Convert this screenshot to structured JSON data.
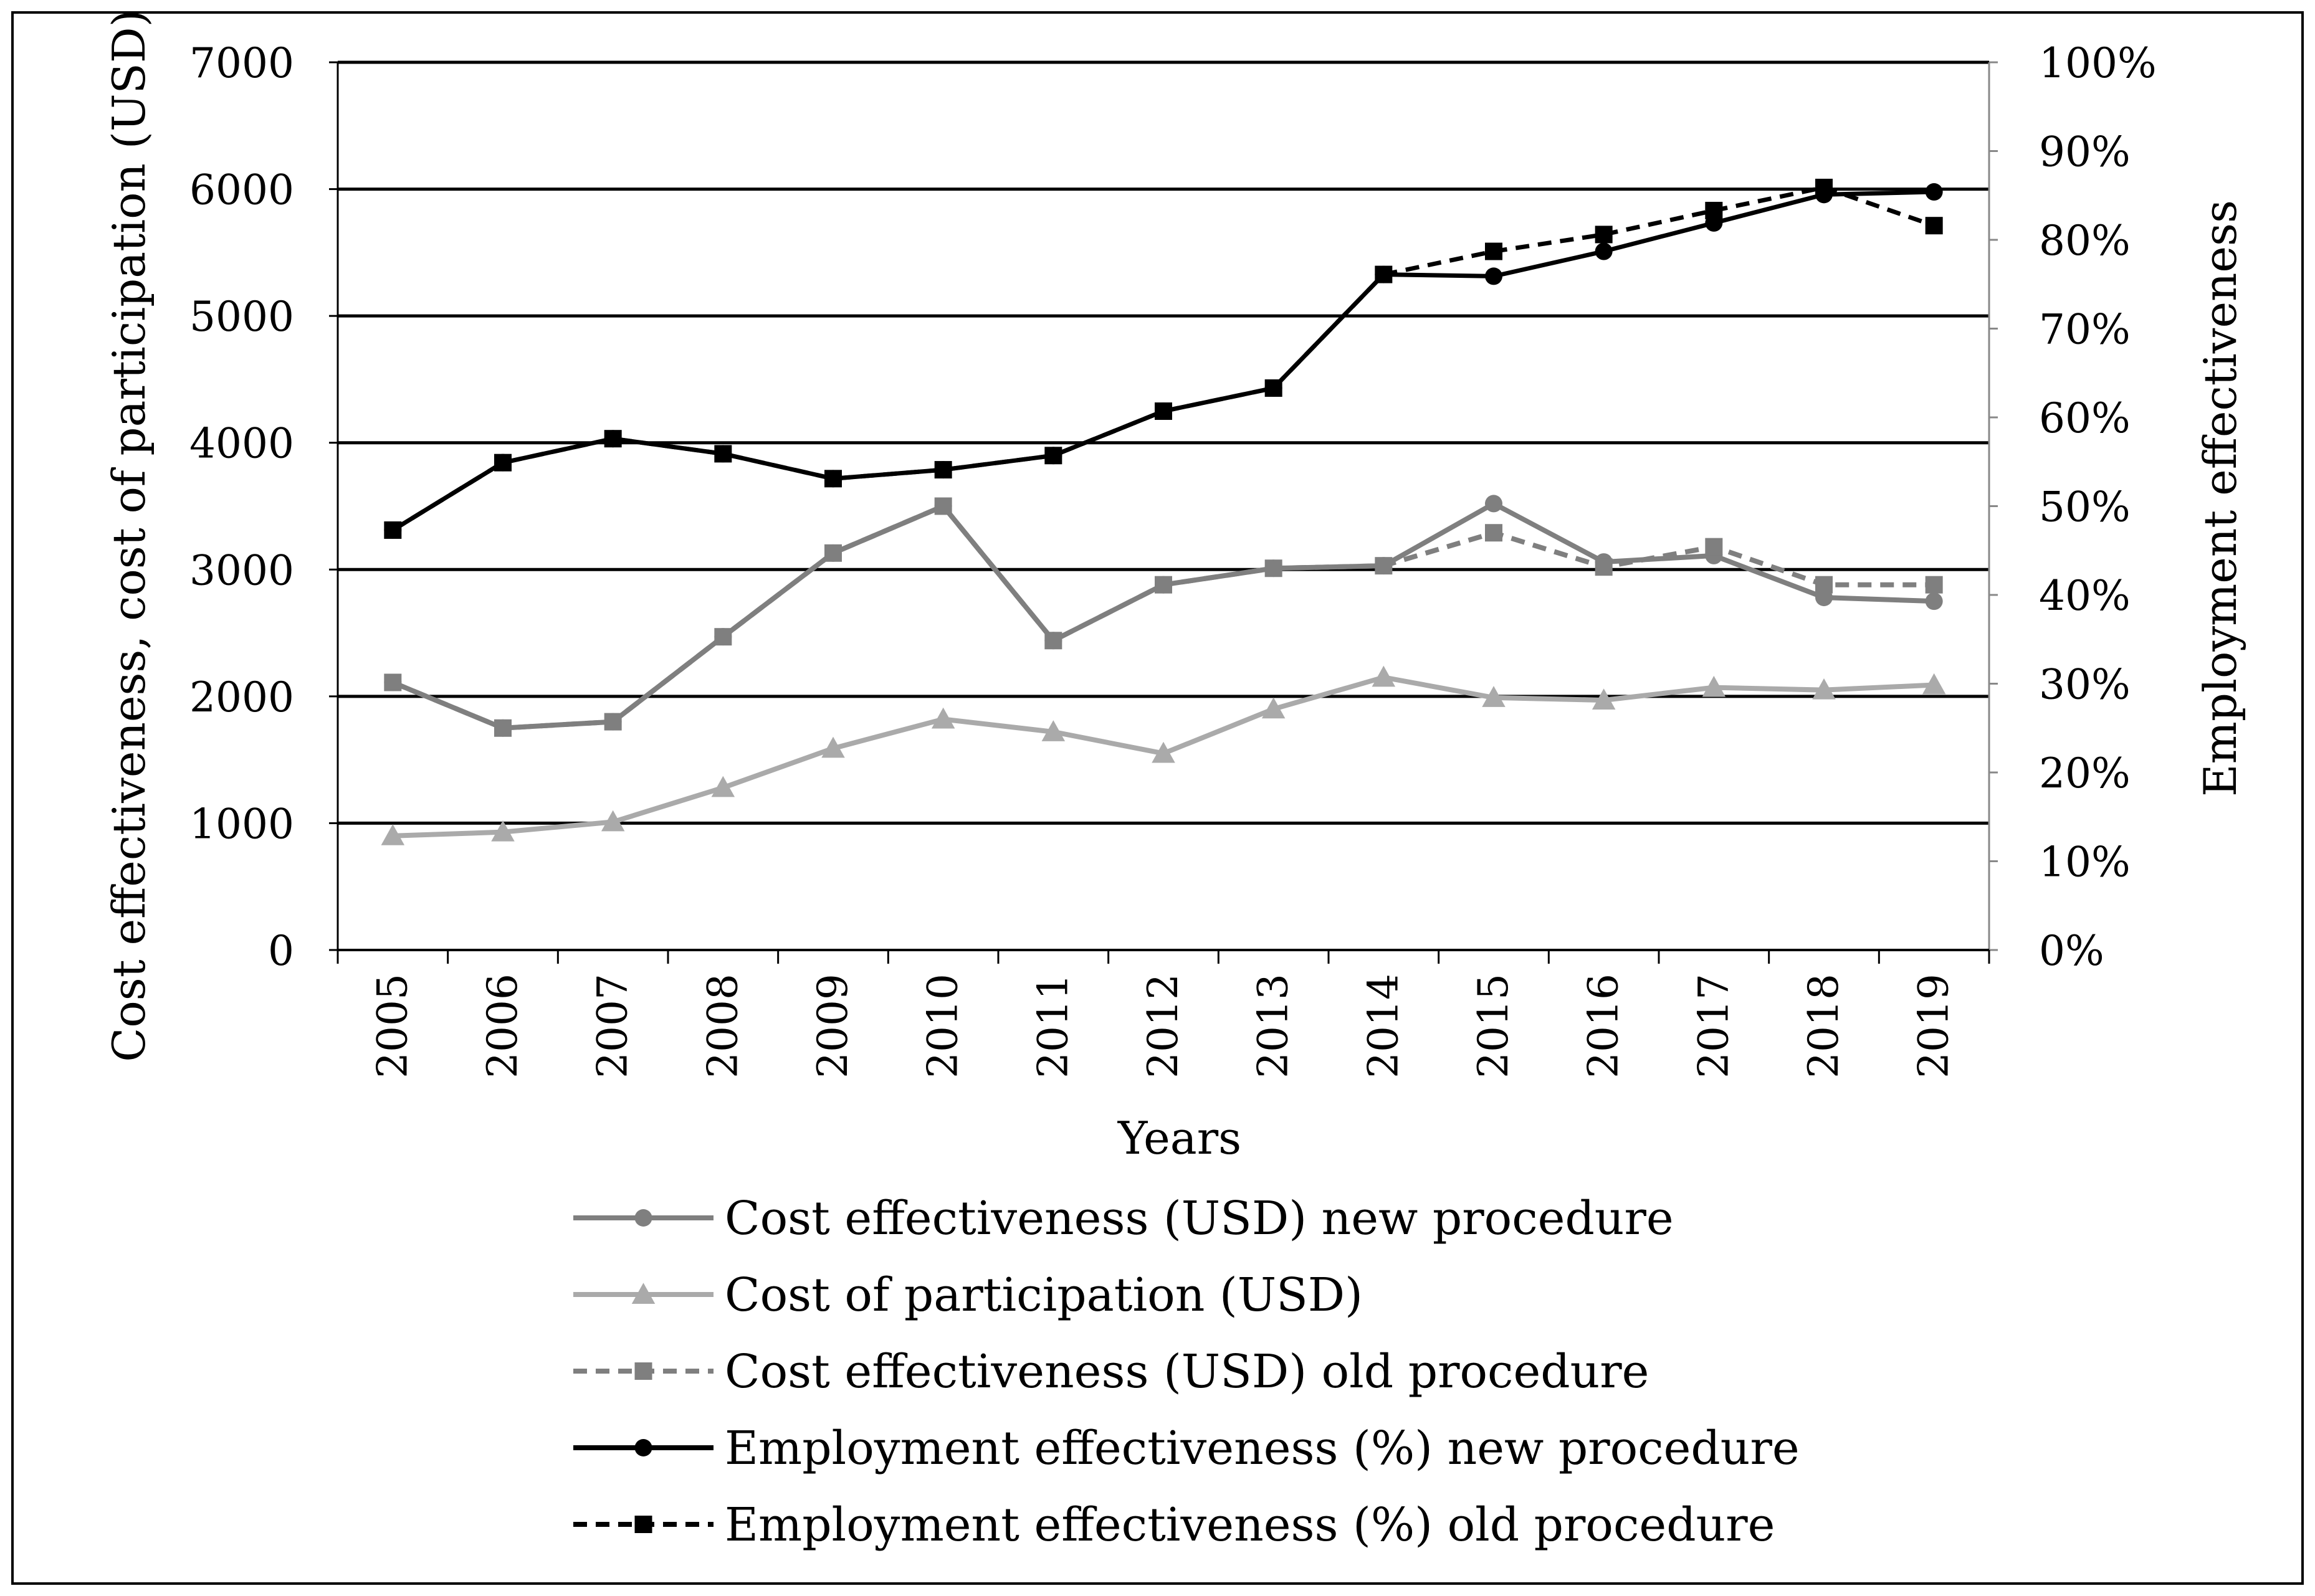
{
  "chart_data": {
    "type": "line",
    "title": "",
    "xlabel": "Years",
    "ylabel": "Cost effectiveness, cost of participation (USD)",
    "y2label": "Employment effectiveness",
    "categories": [
      "2005",
      "2006",
      "2007",
      "2008",
      "2009",
      "2010",
      "2011",
      "2012",
      "2013",
      "2014",
      "2015",
      "2016",
      "2017",
      "2018",
      "2019"
    ],
    "ylim": [
      0,
      7000
    ],
    "yticks": [
      0,
      1000,
      2000,
      3000,
      4000,
      5000,
      6000,
      7000
    ],
    "ytick_labels": [
      "0",
      "1000",
      "2000",
      "3000",
      "4000",
      "5000",
      "6000",
      "7000"
    ],
    "y2lim": [
      0,
      100
    ],
    "y2ticks": [
      0,
      10,
      20,
      30,
      40,
      50,
      60,
      70,
      80,
      90,
      100
    ],
    "y2tick_labels": [
      "0%",
      "10%",
      "20%",
      "30%",
      "40%",
      "50%",
      "60%",
      "70%",
      "80%",
      "90%",
      "100%"
    ],
    "grid": true,
    "legend_position": "bottom",
    "series": [
      {
        "name": "Cost effectiveness (USD) new procedure",
        "axis": "left",
        "color": "#7f7f7f",
        "dash": "solid",
        "marker": "circle",
        "values": [
          2110,
          1750,
          1800,
          2470,
          3130,
          3500,
          2440,
          2880,
          3010,
          3030,
          3520,
          3060,
          3110,
          2780,
          2750
        ]
      },
      {
        "name": "Cost of participation (USD)",
        "axis": "left",
        "color": "#aaaaaa",
        "dash": "solid",
        "marker": "triangle",
        "values": [
          900,
          930,
          1010,
          1280,
          1590,
          1820,
          1720,
          1550,
          1900,
          2150,
          1990,
          1970,
          2070,
          2050,
          2090
        ]
      },
      {
        "name": "Cost effectiveness (USD) old procedure",
        "axis": "left",
        "color": "#7f7f7f",
        "dash": "dashed",
        "marker": "square",
        "values": [
          2110,
          1750,
          1800,
          2470,
          3130,
          3500,
          2440,
          2880,
          3010,
          3030,
          3290,
          3020,
          3180,
          2880,
          2880
        ]
      },
      {
        "name": "Employment effectiveness (%) new procedure",
        "axis": "right",
        "color": "#000000",
        "dash": "solid",
        "marker": "circle",
        "values": [
          47.3,
          54.9,
          57.6,
          55.9,
          53.1,
          54.1,
          55.7,
          60.7,
          63.3,
          76.1,
          75.9,
          78.7,
          81.9,
          85.1,
          85.4
        ]
      },
      {
        "name": "Employment effectiveness (%) old procedure",
        "axis": "right",
        "color": "#000000",
        "dash": "dashed",
        "marker": "square",
        "values": [
          47.3,
          54.9,
          57.6,
          55.9,
          53.1,
          54.1,
          55.7,
          60.7,
          63.3,
          76.1,
          78.7,
          80.6,
          83.3,
          85.9,
          81.6
        ]
      }
    ]
  }
}
